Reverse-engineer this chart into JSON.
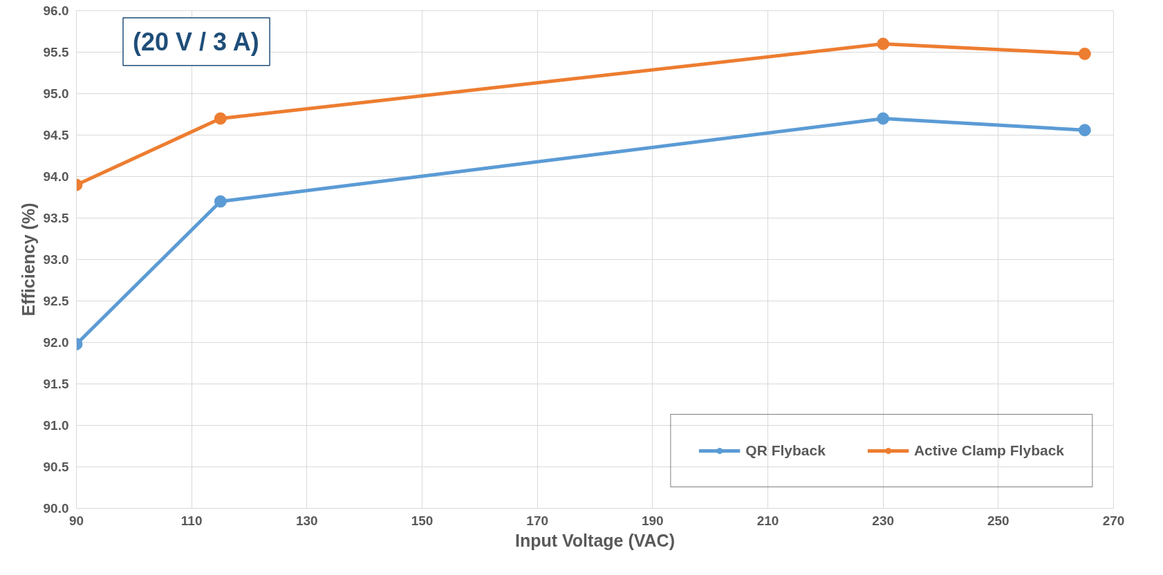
{
  "chart_data": {
    "type": "line",
    "xlabel": "Input Voltage (VAC)",
    "ylabel": "Efficiency (%)",
    "annotations": [
      "(20 V / 3 A)"
    ],
    "x": [
      90,
      115,
      230,
      265
    ],
    "series": [
      {
        "name": "QR Flyback",
        "color": "#5b9bd5",
        "values": [
          91.98,
          93.7,
          94.7,
          94.56
        ]
      },
      {
        "name": "Active Clamp Flyback",
        "color": "#ed7d31",
        "values": [
          93.9,
          94.7,
          95.6,
          95.48
        ]
      }
    ],
    "xlim": [
      90,
      270
    ],
    "xticks": [
      90,
      110,
      130,
      150,
      170,
      190,
      210,
      230,
      250,
      270
    ],
    "ylim": [
      90,
      96
    ],
    "yticks": [
      {
        "value": 90,
        "label": "90.0"
      },
      {
        "value": 90.5,
        "label": "90.5"
      },
      {
        "value": 91,
        "label": "91.0"
      },
      {
        "value": 91.5,
        "label": "91.5"
      },
      {
        "value": 92,
        "label": "92.0"
      },
      {
        "value": 92.5,
        "label": "92.5"
      },
      {
        "value": 93,
        "label": "93.0"
      },
      {
        "value": 93.5,
        "label": "93.5"
      },
      {
        "value": 94,
        "label": "94.0"
      },
      {
        "value": 94.5,
        "label": "94.5"
      },
      {
        "value": 95,
        "label": "95.0"
      },
      {
        "value": 95.5,
        "label": "95.5"
      },
      {
        "value": 96,
        "label": "96.0"
      }
    ],
    "grid": true,
    "legend": "bottom right",
    "marker": "circle",
    "line_style": "solid"
  }
}
